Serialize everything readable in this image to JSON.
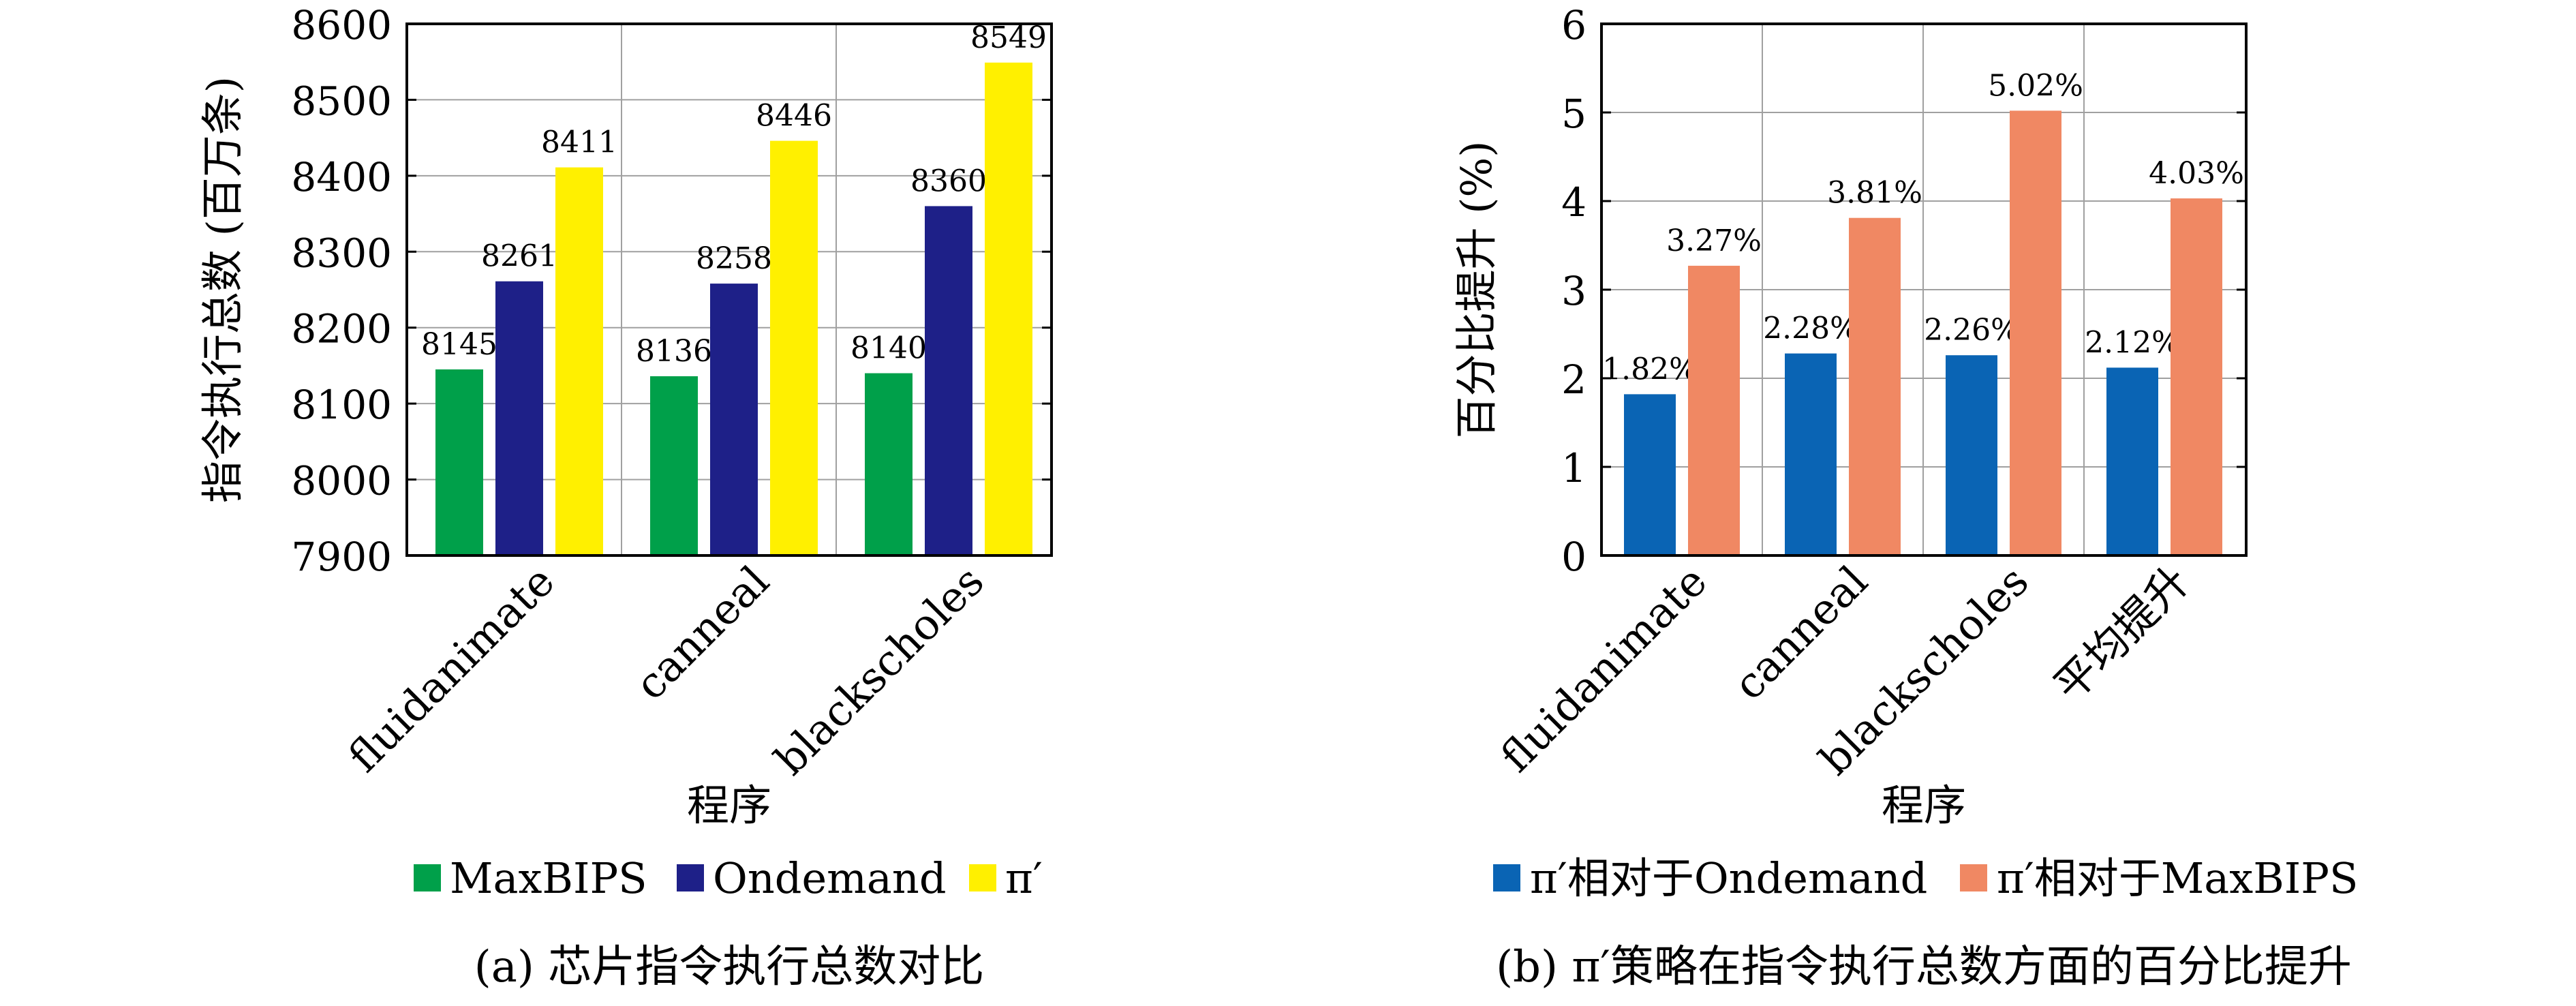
{
  "chart_data": [
    {
      "type": "bar",
      "title": "",
      "caption": "(a) 芯片指令执行总数对比",
      "xlabel": "程序",
      "ylabel": "指令执行总数 (百万条)",
      "ylim": [
        7900,
        8600
      ],
      "yticks": [
        "7900",
        "8000",
        "8100",
        "8200",
        "8300",
        "8400",
        "8500",
        "8600"
      ],
      "categories": [
        "fluidanimate",
        "canneal",
        "blackscholes"
      ],
      "grid": true,
      "legend_position": "bottom",
      "series": [
        {
          "name": "MaxBIPS",
          "color": "#00A04A",
          "values": [
            8145,
            8136,
            8140
          ],
          "labels": [
            "8145",
            "8136",
            "8140"
          ]
        },
        {
          "name": "Ondemand",
          "color": "#1E2088",
          "values": [
            8261,
            8258,
            8360
          ],
          "labels": [
            "8261",
            "8258",
            "8360"
          ]
        },
        {
          "name": "π′",
          "color": "#FFF000",
          "values": [
            8411,
            8446,
            8549
          ],
          "labels": [
            "8411",
            "8446",
            "8549"
          ]
        }
      ]
    },
    {
      "type": "bar",
      "title": "",
      "caption": "(b) π′策略在指令执行总数方面的百分比提升",
      "xlabel": "程序",
      "ylabel": "百分比提升 (%)",
      "ylim": [
        0,
        6
      ],
      "yticks": [
        "0",
        "1",
        "2",
        "3",
        "4",
        "5",
        "6"
      ],
      "categories": [
        "fluidanimate",
        "canneal",
        "blackscholes",
        "平均提升"
      ],
      "grid": true,
      "legend_position": "bottom",
      "series": [
        {
          "name": "π′相对于Ondemand",
          "color": "#0A64B4",
          "values": [
            1.82,
            2.28,
            2.26,
            2.12
          ],
          "labels": [
            "1.82%",
            "2.28%",
            "2.26%",
            "2.12%"
          ]
        },
        {
          "name": "π′相对于MaxBIPS",
          "color": "#F08863",
          "values": [
            3.27,
            3.81,
            5.02,
            4.03
          ],
          "labels": [
            "3.27%",
            "3.81%",
            "5.02%",
            "4.03%"
          ]
        }
      ]
    }
  ]
}
